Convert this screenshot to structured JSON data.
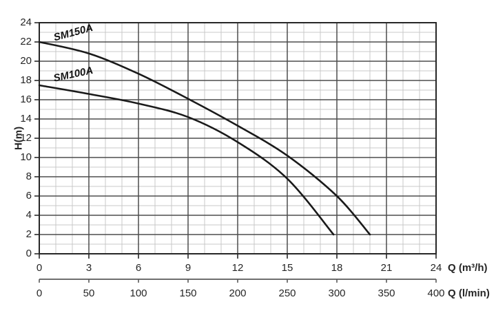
{
  "chart_data": {
    "type": "line",
    "title": "",
    "ylabel": "H(m)",
    "xlabel_primary": "Q (m³/h)",
    "xlabel_secondary": "Q (l/min)",
    "ylim": [
      0,
      24
    ],
    "xlim_m3h": [
      0,
      24
    ],
    "xlim_lmin": [
      0,
      400
    ],
    "y_major_step": 2,
    "y_minor_step": 1,
    "x_major_step": 3,
    "x_minor_step": 1,
    "y_ticks": [
      24,
      22,
      20,
      18,
      16,
      14,
      12,
      10,
      8,
      6,
      4,
      2,
      0
    ],
    "x_ticks_m3h": [
      0,
      3,
      6,
      9,
      12,
      15,
      18,
      21,
      24
    ],
    "x_ticks_lmin": [
      0,
      50,
      100,
      150,
      200,
      250,
      300,
      350,
      400
    ],
    "grid": {
      "major_color": "#4d4d4d",
      "minor_color": "#c9c9c9",
      "border_color": "#262626",
      "axis2_color": "#595959"
    },
    "series": [
      {
        "name": "SM150A",
        "color": "#1a1a1a",
        "x_unit": "m3/h",
        "points": [
          [
            0,
            22
          ],
          [
            3,
            20.8
          ],
          [
            6,
            18.7
          ],
          [
            9,
            16.1
          ],
          [
            12,
            13.3
          ],
          [
            15,
            10.2
          ],
          [
            18,
            6.0
          ],
          [
            20,
            2.0
          ]
        ]
      },
      {
        "name": "SM100A",
        "color": "#1a1a1a",
        "x_unit": "m3/h",
        "points": [
          [
            0,
            17.5
          ],
          [
            3,
            16.6
          ],
          [
            6,
            15.6
          ],
          [
            9,
            14.2
          ],
          [
            12,
            11.6
          ],
          [
            15,
            7.8
          ],
          [
            17.8,
            2.0
          ]
        ]
      }
    ]
  }
}
